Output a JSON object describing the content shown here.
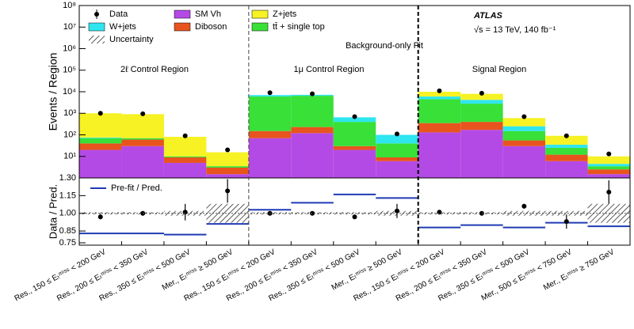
{
  "chart_data": [
    {
      "type": "bar",
      "stacked": true,
      "log_y": true,
      "ylabel": "Events / Region",
      "ylim": [
        1,
        100000000
      ],
      "yticks": [
        {
          "value": 10,
          "label": "10¹"
        },
        {
          "value": 100,
          "label": "10²"
        },
        {
          "value": 1000,
          "label": "10³"
        },
        {
          "value": 10000,
          "label": "10⁴"
        },
        {
          "value": 100000,
          "label": "10⁵"
        },
        {
          "value": 1000000,
          "label": "10⁶"
        },
        {
          "value": 10000000,
          "label": "10⁷"
        },
        {
          "value": 100000000,
          "label": "10⁸"
        }
      ],
      "annotations": [
        "2ℓ Control Region",
        "1μ Control Region",
        "Signal Region",
        "Background-only Fit",
        "ATLAS",
        "√s = 13 TeV, 140 fb⁻¹"
      ],
      "series": [
        {
          "name": "SM Vh",
          "color": "#b44ae6",
          "values": [
            20,
            30,
            5,
            1.5,
            70,
            120,
            20,
            6,
            130,
            170,
            30,
            6,
            1.5
          ]
        },
        {
          "name": "Diboson",
          "color": "#e8541e",
          "values": [
            20,
            30,
            4,
            1.5,
            80,
            110,
            10,
            3,
            220,
            230,
            25,
            6,
            1
          ]
        },
        {
          "name": "tt̄ + single top",
          "color": "#38e038",
          "values": [
            30,
            10,
            1,
            0.5,
            5850,
            6270,
            370,
            31,
            4150,
            2400,
            95,
            13,
            1
          ]
        },
        {
          "name": "W+jets",
          "color": "#2ee6f0",
          "values": [
            5,
            0,
            0,
            0,
            1000,
            700,
            250,
            60,
            1500,
            1400,
            100,
            10,
            1
          ]
        },
        {
          "name": "Z+jets",
          "color": "#f6f224",
          "values": [
            925,
            840,
            71,
            12,
            0,
            0,
            0,
            0,
            4000,
            3800,
            350,
            55,
            5.5
          ]
        }
      ],
      "data": {
        "name": "Data",
        "color": "#000000",
        "values": [
          1000,
          950,
          90,
          20,
          9000,
          8000,
          700,
          110,
          11000,
          8500,
          700,
          90,
          13
        ]
      }
    },
    {
      "type": "errorbar",
      "ylabel": "Data / Pred.",
      "categories": [
        "Res., 150 ≤ Eₜᵐⁱˢˢ < 200 GeV",
        "Res., 200 ≤ Eₜᵐⁱˢˢ < 350 GeV",
        "Res., 350 ≤ Eₜᵐⁱˢˢ < 500 GeV",
        "Mer., Eₜᵐⁱˢˢ ≥ 500 GeV",
        "Res., 150 ≤ Eₜᵐⁱˢˢ < 200 GeV",
        "Res., 200 ≤ Eₜᵐⁱˢˢ < 350 GeV",
        "Res., 350 ≤ Eₜᵐⁱˢˢ < 500 GeV",
        "Mer., Eₜᵐⁱˢˢ ≥ 500 GeV",
        "Res., 150 ≤ Eₜᵐⁱˢˢ < 200 GeV",
        "Res., 200 ≤ Eₜᵐⁱˢˢ < 350 GeV",
        "Res., 350 ≤ Eₜᵐⁱˢˢ < 500 GeV",
        "Mer., 500 ≤ Eₜᵐⁱˢˢ < 750 GeV",
        "Mer., Eₜᵐⁱˢˢ ≥ 750 GeV"
      ],
      "ylim": [
        0.73,
        1.3
      ],
      "yticks": [
        {
          "value": 0.75,
          "label": "0.75"
        },
        {
          "value": 0.85,
          "label": "0.85"
        },
        {
          "value": 1,
          "label": "1.00"
        },
        {
          "value": 1.15,
          "label": "1.15"
        },
        {
          "value": 1.3,
          "label": "1.30"
        }
      ],
      "values": [
        0.97,
        1.0,
        1.01,
        1.19,
        1.0,
        1.0,
        0.97,
        1.02,
        1.01,
        1.0,
        1.06,
        0.93,
        1.18
      ],
      "errors": [
        0.02,
        0.02,
        0.07,
        0.1,
        0.01,
        0.01,
        0.02,
        0.06,
        0.01,
        0.01,
        0.02,
        0.06,
        0.1
      ],
      "prefit": {
        "name": "Pre-fit / Pred.",
        "color": "#1f3bb3",
        "values": [
          0.83,
          0.83,
          0.82,
          0.91,
          1.03,
          1.09,
          1.16,
          1.13,
          0.88,
          0.9,
          0.88,
          0.92,
          0.89
        ]
      },
      "band": {
        "name": "Uncertainty",
        "values": [
          0.01,
          0.01,
          0.02,
          0.08,
          0.01,
          0.01,
          0.01,
          0.02,
          0.01,
          0.01,
          0.02,
          0.02,
          0.08
        ]
      }
    }
  ]
}
